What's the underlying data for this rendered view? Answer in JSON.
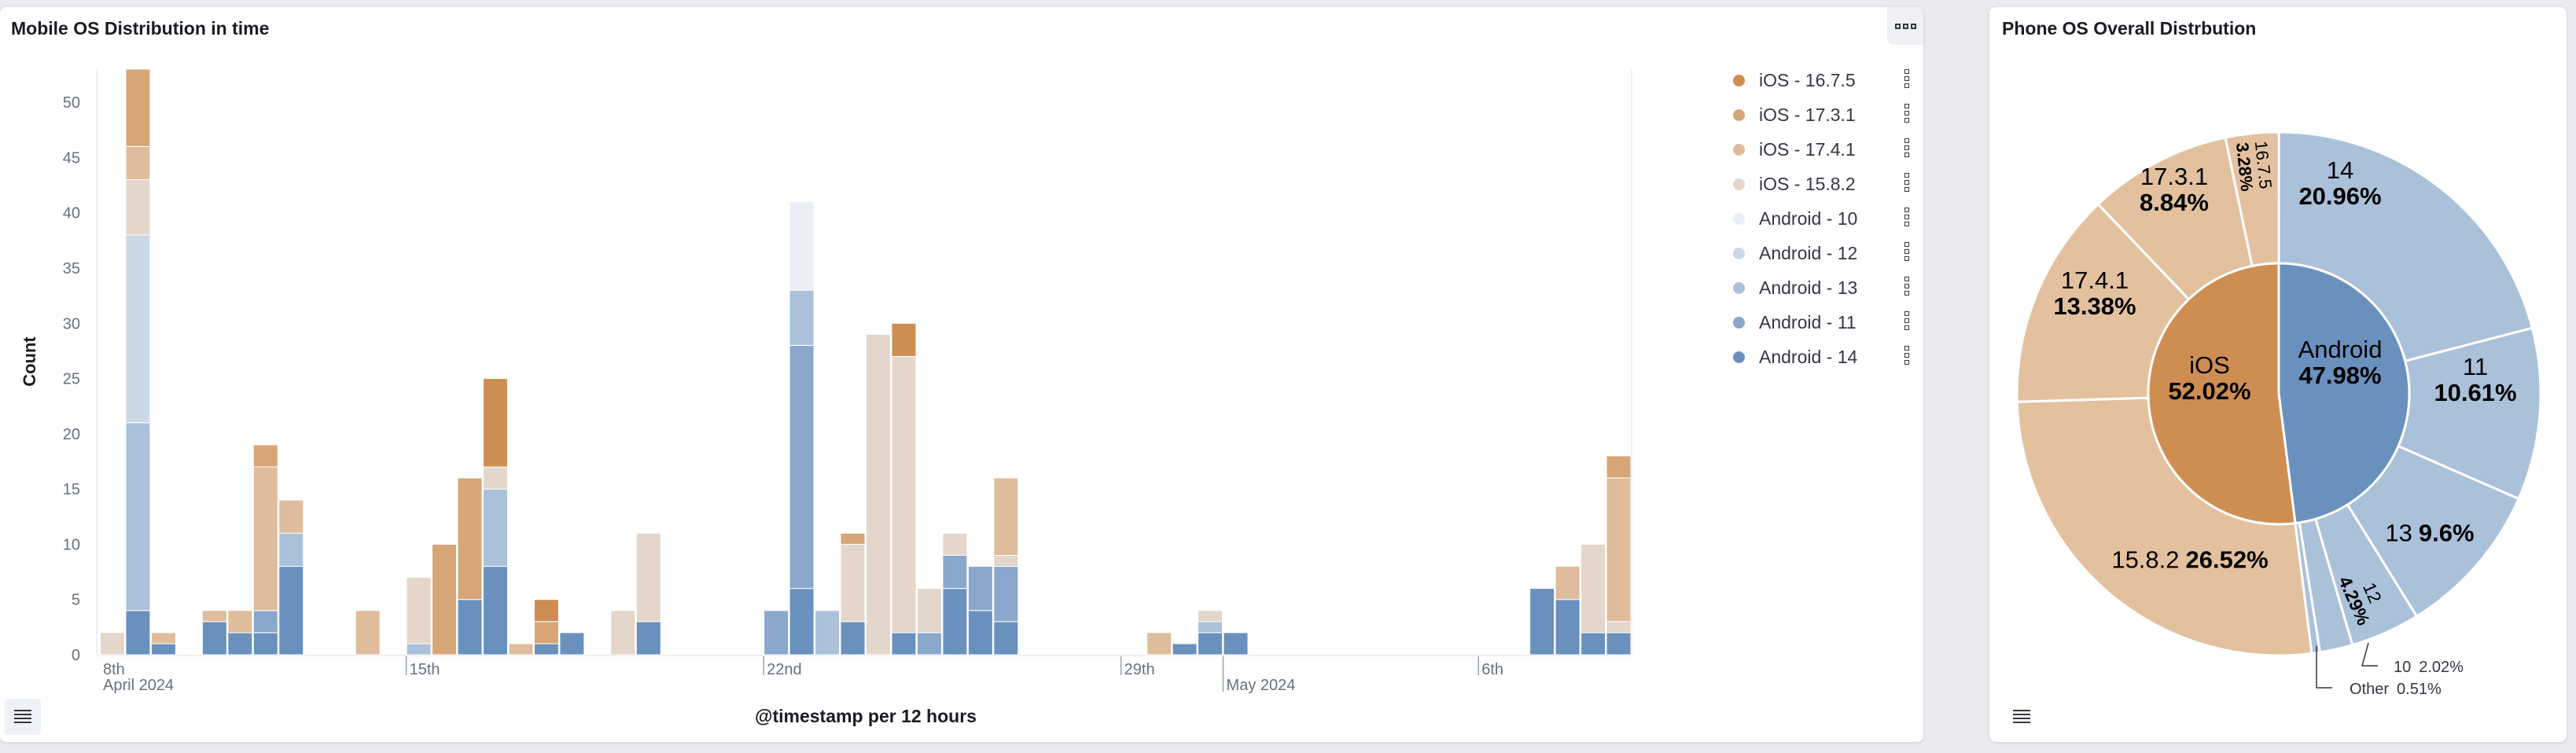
{
  "left_panel": {
    "title": "Mobile OS Distribution in time",
    "menu_icon": "ellipsis-icon",
    "legend_toggle_icon": "list-icon"
  },
  "right_panel": {
    "title": "Phone OS Overall Distrbution",
    "legend_toggle_icon": "list-icon"
  },
  "chart_data": [
    {
      "type": "bar",
      "stacked": true,
      "xlabel": "@timestamp per 12 hours",
      "ylabel": "Count",
      "ylim": [
        0,
        53
      ],
      "yticks": [
        0,
        5,
        10,
        15,
        20,
        25,
        30,
        35,
        40,
        45,
        50
      ],
      "xticks": [
        {
          "label": "8th",
          "sub": "April 2024",
          "at": "2024-04-09 00:00"
        },
        {
          "label": "15th",
          "sub": "",
          "at": "2024-04-15 00:00"
        },
        {
          "label": "22nd",
          "sub": "",
          "at": "2024-04-22 00:00"
        },
        {
          "label": "29th",
          "sub": "",
          "at": "2024-04-29 00:00"
        },
        {
          "label": "",
          "sub": "May 2024",
          "at": "2024-05-01 00:00"
        },
        {
          "label": "6th",
          "sub": "",
          "at": "2024-05-06 00:00"
        }
      ],
      "legend_position": "right",
      "x": [
        "2024-04-09 00:00",
        "2024-04-09 12:00",
        "2024-04-10 00:00",
        "2024-04-11 00:00",
        "2024-04-11 12:00",
        "2024-04-12 00:00",
        "2024-04-12 12:00",
        "2024-04-14 00:00",
        "2024-04-15 00:00",
        "2024-04-15 12:00",
        "2024-04-16 00:00",
        "2024-04-16 12:00",
        "2024-04-17 00:00",
        "2024-04-17 12:00",
        "2024-04-18 00:00",
        "2024-04-19 00:00",
        "2024-04-19 12:00",
        "2024-04-22 00:00",
        "2024-04-22 12:00",
        "2024-04-23 00:00",
        "2024-04-23 12:00",
        "2024-04-24 00:00",
        "2024-04-24 12:00",
        "2024-04-25 00:00",
        "2024-04-25 12:00",
        "2024-04-26 00:00",
        "2024-04-26 12:00",
        "2024-04-29 12:00",
        "2024-04-30 00:00",
        "2024-04-30 12:00",
        "2024-05-01 00:00",
        "2024-05-07 00:00",
        "2024-05-07 12:00",
        "2024-05-08 00:00",
        "2024-05-08 12:00"
      ],
      "series": [
        {
          "name": "iOS - 16.7.5",
          "color": "#ce8e53",
          "values": [
            0,
            0,
            0,
            0,
            0,
            0,
            0,
            0,
            0,
            0,
            0,
            8,
            0,
            2,
            0,
            0,
            0,
            0,
            0,
            0,
            0,
            0,
            3,
            0,
            0,
            0,
            0,
            0,
            0,
            0,
            0,
            0,
            0,
            0,
            0
          ]
        },
        {
          "name": "iOS - 17.3.1",
          "color": "#d6a677",
          "values": [
            0,
            7,
            0,
            0,
            0,
            2,
            0,
            0,
            0,
            10,
            11,
            0,
            0,
            2,
            0,
            0,
            0,
            0,
            0,
            0,
            1,
            0,
            0,
            0,
            0,
            0,
            0,
            0,
            0,
            0,
            0,
            0,
            0,
            0,
            2
          ]
        },
        {
          "name": "iOS - 17.4.1",
          "color": "#dfbc9c",
          "values": [
            0,
            3,
            1,
            1,
            2,
            13,
            3,
            4,
            0,
            0,
            0,
            0,
            1,
            0,
            0,
            0,
            0,
            0,
            0,
            0,
            0,
            0,
            0,
            0,
            0,
            0,
            7,
            2,
            0,
            0,
            0,
            0,
            3,
            0,
            13
          ]
        },
        {
          "name": "iOS - 15.8.2",
          "color": "#e4d6ca",
          "values": [
            2,
            5,
            0,
            0,
            0,
            0,
            0,
            0,
            6,
            0,
            0,
            2,
            0,
            0,
            0,
            4,
            8,
            0,
            0,
            0,
            7,
            29,
            25,
            4,
            2,
            0,
            1,
            0,
            0,
            1,
            0,
            0,
            0,
            8,
            1
          ]
        },
        {
          "name": "Android - 10",
          "color": "#ebeff5",
          "values": [
            0,
            0,
            0,
            0,
            0,
            0,
            0,
            0,
            0,
            0,
            0,
            0,
            0,
            0,
            0,
            0,
            0,
            0,
            8,
            0,
            0,
            0,
            0,
            0,
            0,
            0,
            0,
            0,
            0,
            0,
            0,
            0,
            0,
            0,
            0
          ]
        },
        {
          "name": "Android - 12",
          "color": "#cbd9e7",
          "values": [
            0,
            17,
            0,
            0,
            0,
            0,
            0,
            0,
            0,
            0,
            0,
            0,
            0,
            0,
            0,
            0,
            0,
            0,
            0,
            0,
            0,
            0,
            0,
            0,
            0,
            0,
            0,
            0,
            0,
            0,
            0,
            0,
            0,
            0,
            0
          ]
        },
        {
          "name": "Android - 13",
          "color": "#abc1da",
          "values": [
            0,
            17,
            0,
            0,
            0,
            0,
            3,
            0,
            1,
            0,
            0,
            7,
            0,
            0,
            0,
            0,
            0,
            0,
            5,
            4,
            0,
            0,
            0,
            0,
            0,
            0,
            0,
            0,
            0,
            1,
            0,
            0,
            0,
            0,
            0
          ]
        },
        {
          "name": "Android - 11",
          "color": "#89a8cb",
          "values": [
            0,
            0,
            0,
            0,
            0,
            2,
            0,
            0,
            0,
            0,
            0,
            0,
            0,
            0,
            0,
            0,
            0,
            4,
            22,
            0,
            0,
            0,
            0,
            2,
            3,
            4,
            5,
            0,
            0,
            0,
            0,
            0,
            0,
            0,
            0
          ]
        },
        {
          "name": "Android - 14",
          "color": "#6a91bd",
          "values": [
            0,
            4,
            1,
            3,
            2,
            2,
            8,
            0,
            0,
            0,
            5,
            8,
            0,
            1,
            2,
            0,
            3,
            0,
            6,
            0,
            3,
            0,
            2,
            0,
            6,
            4,
            3,
            0,
            1,
            2,
            2,
            6,
            5,
            2,
            2
          ]
        }
      ]
    },
    {
      "type": "pie",
      "donut_levels": 2,
      "inner": [
        {
          "name": "Android",
          "value": 47.98,
          "color": "#6a91bd"
        },
        {
          "name": "iOS",
          "value": 52.02,
          "color": "#ce8e52"
        }
      ],
      "outer": [
        {
          "parent": "Android",
          "name": "14",
          "value": 20.96,
          "color": "#abc1da"
        },
        {
          "parent": "Android",
          "name": "11",
          "value": 10.61,
          "color": "#abc1da"
        },
        {
          "parent": "Android",
          "name": "13",
          "value": 9.6,
          "color": "#abc1da"
        },
        {
          "parent": "Android",
          "name": "12",
          "value": 4.29,
          "color": "#abc1da"
        },
        {
          "parent": "Android",
          "name": "10",
          "value": 2.02,
          "color": "#abc1da"
        },
        {
          "parent": "Android",
          "name": "Other",
          "value": 0.51,
          "color": "#abc1da"
        },
        {
          "parent": "iOS",
          "name": "15.8.2",
          "value": 26.52,
          "color": "#e3c19f"
        },
        {
          "parent": "iOS",
          "name": "17.4.1",
          "value": 13.38,
          "color": "#e3c19f"
        },
        {
          "parent": "iOS",
          "name": "17.3.1",
          "value": 8.84,
          "color": "#e3c19f"
        },
        {
          "parent": "iOS",
          "name": "16.7.5",
          "value": 3.28,
          "color": "#e3c19f"
        }
      ]
    }
  ]
}
